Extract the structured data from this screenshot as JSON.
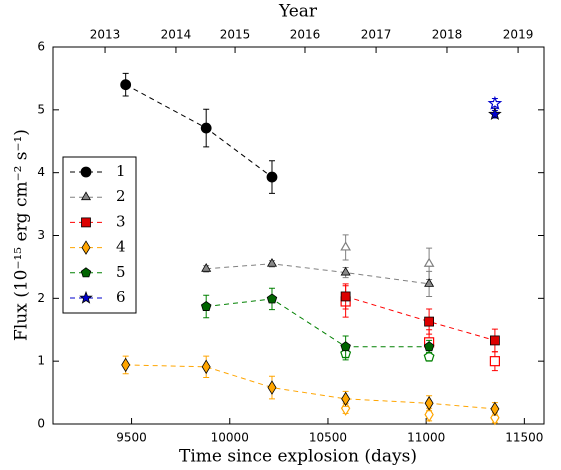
{
  "chart_data": {
    "type": "errorbar",
    "xlabel": "Time since explosion (days)",
    "ylabel": "Flux (10⁻¹⁵ erg cm⁻² s⁻¹)",
    "x2label": "Year",
    "xlim": [
      9100,
      11600
    ],
    "xticks": [
      9500,
      10000,
      10500,
      11000,
      11500
    ],
    "x2ticks": [
      {
        "value": 9365,
        "label": "2013"
      },
      {
        "value": 9726,
        "label": "2014"
      },
      {
        "value": 10027,
        "label": "2015"
      },
      {
        "value": 10383,
        "label": "2016"
      },
      {
        "value": 10745,
        "label": "2017"
      },
      {
        "value": 11106,
        "label": "2018"
      },
      {
        "value": 11468,
        "label": "2019"
      }
    ],
    "ylim": [
      0,
      6
    ],
    "yticks": [
      0,
      1,
      2,
      3,
      4,
      5,
      6
    ],
    "legend": "center left",
    "x": [
      9470,
      9880,
      10215,
      10590,
      11015,
      11350
    ],
    "series": [
      {
        "name": "1",
        "color": "#000000",
        "fill": "#000000",
        "marker": "circle",
        "values": [
          5.4,
          4.71,
          3.93,
          null,
          null,
          null
        ],
        "errors": [
          0.18,
          0.3,
          0.26,
          null,
          null,
          null
        ],
        "open_values": [
          null,
          null,
          null,
          null,
          null,
          null
        ],
        "open_errors": [
          null,
          null,
          null,
          null,
          null,
          null
        ]
      },
      {
        "name": "2",
        "color": "#808080",
        "fill": "#888888",
        "marker": "triangle",
        "values": [
          null,
          2.47,
          2.55,
          2.41,
          2.23,
          null
        ],
        "errors": [
          null,
          0.05,
          0.05,
          0.08,
          0.2,
          null
        ],
        "open_values": [
          null,
          null,
          null,
          2.81,
          2.55,
          null
        ],
        "open_errors": [
          null,
          null,
          null,
          0.2,
          0.25,
          null
        ]
      },
      {
        "name": "3",
        "color": "#ff0000",
        "fill": "#dd0000",
        "marker": "square",
        "values": [
          null,
          null,
          null,
          2.03,
          1.63,
          1.33
        ],
        "errors": [
          null,
          null,
          null,
          0.2,
          0.2,
          0.18
        ],
        "open_values": [
          null,
          null,
          null,
          1.95,
          1.3,
          1.0
        ],
        "open_errors": [
          null,
          null,
          null,
          0.25,
          0.2,
          0.15
        ]
      },
      {
        "name": "4",
        "color": "#ffa500",
        "fill": "#ffa500",
        "marker": "diamond",
        "values": [
          0.94,
          0.91,
          0.58,
          0.4,
          0.33,
          0.24
        ],
        "errors": [
          0.14,
          0.17,
          0.18,
          0.12,
          0.12,
          0.1
        ],
        "open_values": [
          null,
          null,
          null,
          0.25,
          0.15,
          0.1
        ],
        "open_errors": [
          null,
          null,
          null,
          0.08,
          0.1,
          0.08
        ]
      },
      {
        "name": "5",
        "color": "#008000",
        "fill": "#006400",
        "marker": "pentagon",
        "values": [
          null,
          1.87,
          1.99,
          1.23,
          1.23,
          null
        ],
        "errors": [
          null,
          0.18,
          0.17,
          0.17,
          0.1,
          null
        ],
        "open_values": [
          null,
          null,
          null,
          1.12,
          1.07,
          null
        ],
        "open_errors": [
          null,
          null,
          null,
          0.1,
          0.07,
          null
        ]
      },
      {
        "name": "6",
        "color": "#0000cd",
        "fill": "#0000cd",
        "marker": "star",
        "values": [
          null,
          null,
          null,
          null,
          null,
          4.93
        ],
        "errors": [
          null,
          null,
          null,
          null,
          null,
          0.06
        ],
        "open_values": [
          null,
          null,
          null,
          null,
          null,
          5.1
        ],
        "open_errors": [
          null,
          null,
          null,
          null,
          null,
          0.08
        ]
      }
    ]
  }
}
